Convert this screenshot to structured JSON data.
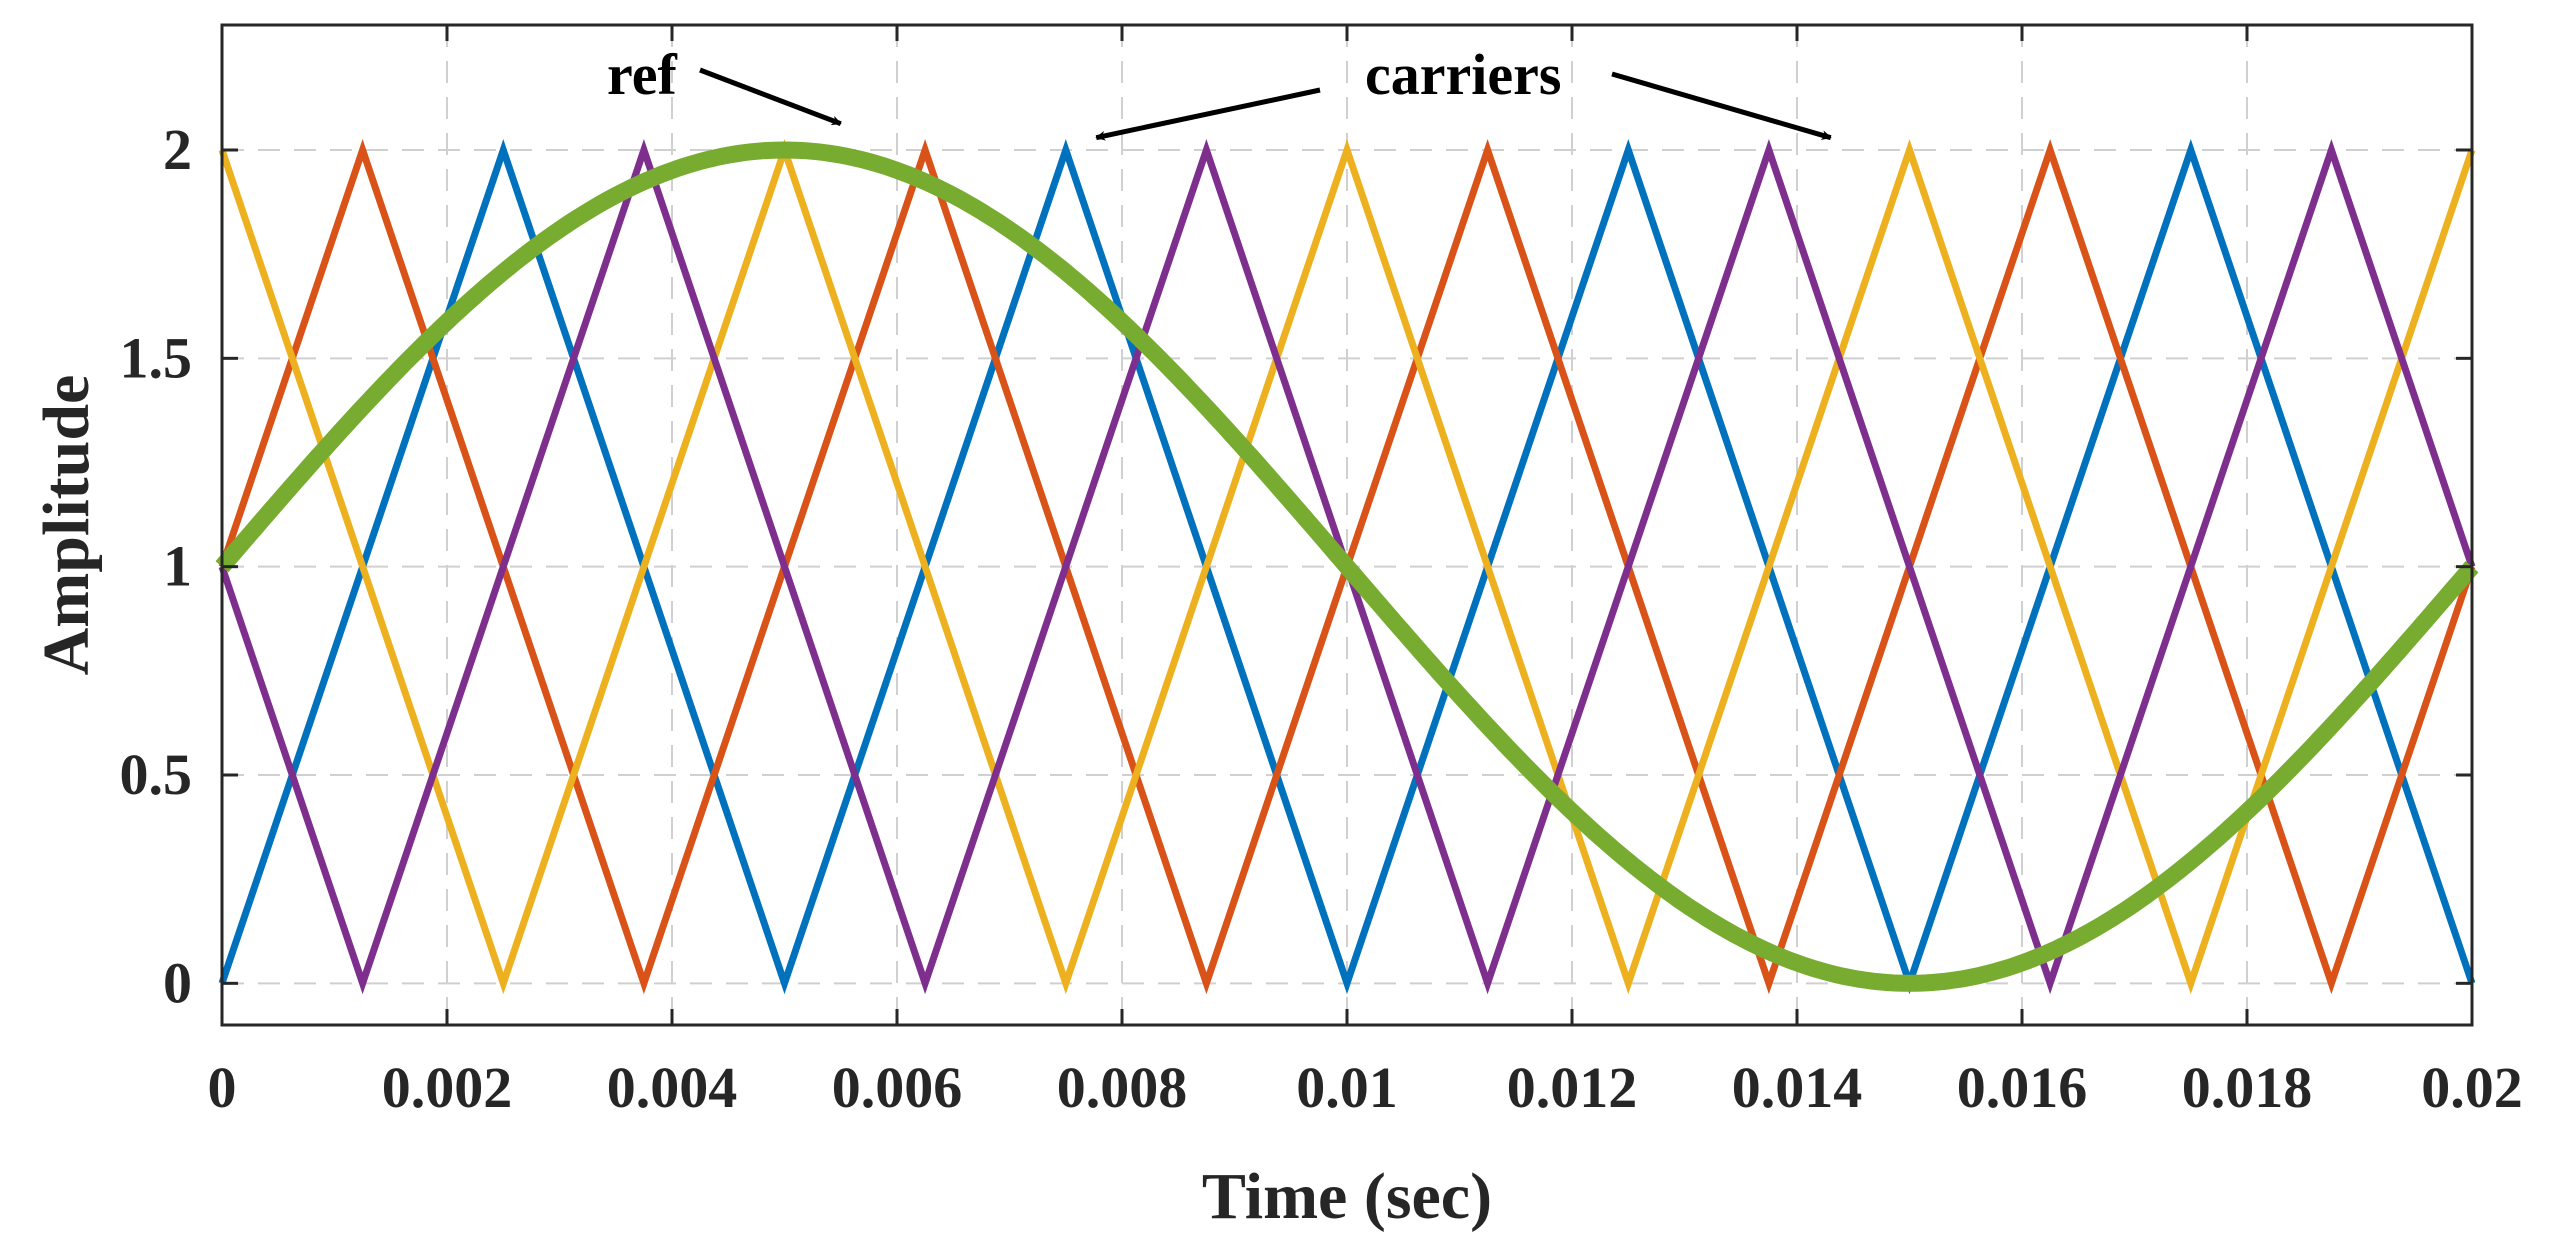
{
  "chart_data": {
    "type": "line",
    "title": "",
    "xlabel": "Time (sec)",
    "ylabel": "Amplitude",
    "xlim": [
      0,
      0.02
    ],
    "ylim": [
      -0.1,
      2.3
    ],
    "grid": true,
    "xticks": [
      0,
      0.002,
      0.004,
      0.006,
      0.008,
      0.01,
      0.012,
      0.014,
      0.016,
      0.018,
      0.02
    ],
    "xtick_labels": [
      "0",
      "0.002",
      "0.004",
      "0.006",
      "0.008",
      "0.01",
      "0.012",
      "0.014",
      "0.016",
      "0.018",
      "0.02"
    ],
    "yticks": [
      0,
      0.5,
      1,
      1.5,
      2
    ],
    "ytick_labels": [
      "0",
      "0.5",
      "1",
      "1.5",
      "2"
    ],
    "series": [
      {
        "name": "carrier-1",
        "color": "#0072BD",
        "x": [
          0,
          0.0025,
          0.005,
          0.0075,
          0.01,
          0.0125,
          0.015,
          0.0175,
          0.02
        ],
        "y": [
          0,
          2,
          0,
          2,
          0,
          2,
          0,
          2,
          0
        ]
      },
      {
        "name": "carrier-2",
        "color": "#D95319",
        "x": [
          0,
          0.00125,
          0.00375,
          0.00625,
          0.00875,
          0.01125,
          0.01375,
          0.01625,
          0.01875,
          0.02
        ],
        "y": [
          1,
          2,
          0,
          2,
          0,
          2,
          0,
          2,
          0,
          1
        ]
      },
      {
        "name": "carrier-3",
        "color": "#EDB120",
        "x": [
          0,
          0.0025,
          0.005,
          0.0075,
          0.01,
          0.0125,
          0.015,
          0.0175,
          0.02
        ],
        "y": [
          2,
          0,
          2,
          0,
          2,
          0,
          2,
          0,
          2
        ]
      },
      {
        "name": "carrier-4",
        "color": "#7E2F8E",
        "x": [
          0,
          0.00125,
          0.00375,
          0.00625,
          0.00875,
          0.01125,
          0.01375,
          0.01625,
          0.01875,
          0.02
        ],
        "y": [
          1,
          0,
          2,
          0,
          2,
          0,
          2,
          0,
          2,
          1
        ]
      },
      {
        "name": "ref",
        "color": "#77AC30",
        "function": "1 + sin(2*pi*50*t)",
        "x": [
          0,
          0.001,
          0.002,
          0.003,
          0.004,
          0.005,
          0.006,
          0.007,
          0.008,
          0.009,
          0.01,
          0.011,
          0.012,
          0.013,
          0.014,
          0.015,
          0.016,
          0.017,
          0.018,
          0.019,
          0.02
        ],
        "y": [
          1,
          1.309,
          1.588,
          1.809,
          1.951,
          2,
          1.951,
          1.809,
          1.588,
          1.309,
          1,
          0.691,
          0.412,
          0.191,
          0.049,
          0,
          0.049,
          0.191,
          0.412,
          0.691,
          1
        ]
      }
    ],
    "annotations": [
      {
        "text": "ref",
        "points_to": [
          0.0055,
          2.02
        ]
      },
      {
        "text": "carriers",
        "points_to": [
          [
            0.0077,
            2.02
          ],
          [
            0.0143,
            2.02
          ]
        ]
      }
    ]
  }
}
